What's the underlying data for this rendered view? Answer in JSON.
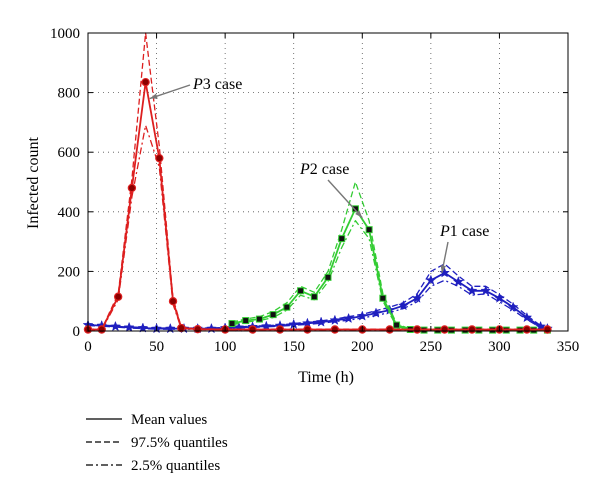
{
  "chart_data": {
    "type": "line",
    "xlabel": "Time (h)",
    "ylabel": "Infected count",
    "xlim": [
      0,
      350
    ],
    "ylim": [
      0,
      1000
    ],
    "xticks": [
      "0",
      "50",
      "100",
      "150",
      "200",
      "250",
      "300",
      "350"
    ],
    "yticks": [
      "0",
      "200",
      "400",
      "600",
      "800",
      "1000"
    ],
    "grid": true,
    "colors": {
      "P1": "#1f1fbf",
      "P2": "#33cc33",
      "P3": "#dd1f1f"
    },
    "annotations": [
      {
        "italic": "P",
        "text": "3 case",
        "target_x": 45,
        "target_y": 780
      },
      {
        "italic": "P",
        "text": "2 case",
        "target_x": 200,
        "target_y": 380
      },
      {
        "italic": "P",
        "text": "1 case",
        "target_x": 258,
        "target_y": 195
      }
    ],
    "legend": {
      "placement": "bottom-left",
      "entries": [
        {
          "style": "solid",
          "label": "Mean values"
        },
        {
          "style": "dashed",
          "label": "97.5% quantiles"
        },
        {
          "style": "dashdot",
          "label": "2.5% quantiles"
        }
      ]
    },
    "series": [
      {
        "case": "P1",
        "marker": "star",
        "x": [
          0,
          10,
          20,
          30,
          40,
          50,
          60,
          70,
          80,
          90,
          100,
          110,
          120,
          130,
          140,
          150,
          160,
          170,
          180,
          190,
          200,
          210,
          220,
          230,
          240,
          250,
          260,
          270,
          280,
          290,
          300,
          310,
          320,
          330,
          335
        ],
        "mean": [
          20,
          18,
          15,
          12,
          10,
          8,
          8,
          8,
          8,
          8,
          10,
          12,
          14,
          16,
          18,
          22,
          26,
          30,
          36,
          42,
          50,
          60,
          70,
          85,
          110,
          170,
          195,
          165,
          135,
          135,
          110,
          80,
          45,
          15,
          8
        ],
        "upper": [
          22,
          20,
          17,
          14,
          12,
          10,
          10,
          10,
          10,
          10,
          12,
          14,
          16,
          18,
          20,
          25,
          30,
          34,
          40,
          48,
          56,
          68,
          80,
          95,
          125,
          200,
          225,
          185,
          150,
          150,
          122,
          90,
          52,
          18,
          9
        ],
        "lower": [
          18,
          16,
          13,
          10,
          8,
          6,
          6,
          6,
          6,
          6,
          8,
          10,
          12,
          14,
          16,
          19,
          22,
          26,
          32,
          36,
          44,
          52,
          62,
          75,
          98,
          150,
          170,
          150,
          120,
          125,
          98,
          70,
          38,
          12,
          6
        ]
      },
      {
        "case": "P2",
        "marker": "square",
        "x": [
          105,
          115,
          125,
          135,
          145,
          155,
          165,
          175,
          185,
          195,
          205,
          215,
          225,
          235,
          245,
          255,
          265,
          275,
          285,
          295,
          305,
          315,
          325,
          335
        ],
        "mean": [
          25,
          35,
          40,
          55,
          80,
          135,
          115,
          180,
          310,
          410,
          340,
          110,
          20,
          5,
          3,
          3,
          3,
          3,
          3,
          3,
          3,
          3,
          3,
          3
        ],
        "upper": [
          30,
          40,
          48,
          65,
          95,
          150,
          130,
          200,
          340,
          500,
          370,
          125,
          25,
          6,
          4,
          4,
          4,
          4,
          4,
          4,
          4,
          4,
          4,
          4
        ],
        "lower": [
          20,
          30,
          35,
          45,
          70,
          120,
          105,
          165,
          280,
          370,
          310,
          100,
          15,
          4,
          2,
          2,
          2,
          2,
          2,
          2,
          2,
          2,
          2,
          2
        ]
      },
      {
        "case": "P3",
        "marker": "circle",
        "x": [
          0,
          10,
          22,
          32,
          42,
          52,
          62,
          68,
          80,
          100,
          120,
          140,
          160,
          180,
          200,
          220,
          240,
          260,
          280,
          300,
          320,
          335
        ],
        "mean": [
          5,
          5,
          115,
          480,
          835,
          580,
          100,
          10,
          6,
          5,
          5,
          5,
          5,
          5,
          5,
          5,
          5,
          5,
          5,
          5,
          5,
          5
        ],
        "upper": [
          6,
          6,
          125,
          510,
          1000,
          620,
          110,
          12,
          7,
          6,
          6,
          6,
          6,
          6,
          6,
          6,
          6,
          6,
          6,
          6,
          6,
          6
        ],
        "lower": [
          4,
          4,
          105,
          450,
          690,
          550,
          90,
          8,
          5,
          4,
          4,
          4,
          4,
          4,
          4,
          4,
          4,
          4,
          4,
          4,
          4,
          4
        ]
      }
    ]
  }
}
